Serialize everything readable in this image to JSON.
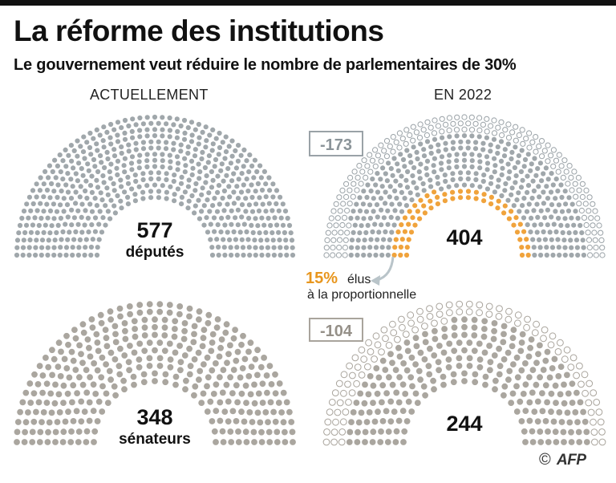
{
  "header": {
    "title": "La réforme des institutions",
    "subtitle": "Le gouvernement veut réduire le nombre de parlementaires de 30%"
  },
  "columns": {
    "left": "ACTUELLEMENT",
    "right": "EN 2022"
  },
  "colors": {
    "deputes": "#a0a7ab",
    "senateurs": "#aaa69f",
    "proportionnelle": "#f0a33c",
    "removed_stroke_deputes": "#9aa2a7",
    "removed_stroke_senateurs": "#a9a49c",
    "annotation_text": "#e8961e",
    "arrow": "#b9c4c9"
  },
  "footer": {
    "copyright": "©",
    "logo": "AFP"
  },
  "chart_data": [
    {
      "type": "hemicycle",
      "column": "ACTUELLEMENT",
      "chamber": "députés",
      "seats": 577,
      "value_label": "577",
      "unit_label": "députés"
    },
    {
      "type": "hemicycle",
      "column": "EN 2022",
      "chamber": "députés",
      "seats": 404,
      "removed": 173,
      "removed_label": "-173",
      "value_label": "404",
      "proportional_percent": 15,
      "proportional_label": "15%",
      "proportional_text_1": "élus",
      "proportional_text_2": "à la proportionnelle"
    },
    {
      "type": "hemicycle",
      "column": "ACTUELLEMENT",
      "chamber": "sénateurs",
      "seats": 348,
      "value_label": "348",
      "unit_label": "sénateurs"
    },
    {
      "type": "hemicycle",
      "column": "EN 2022",
      "chamber": "sénateurs",
      "seats": 244,
      "removed": 104,
      "removed_label": "-104",
      "value_label": "244"
    }
  ]
}
